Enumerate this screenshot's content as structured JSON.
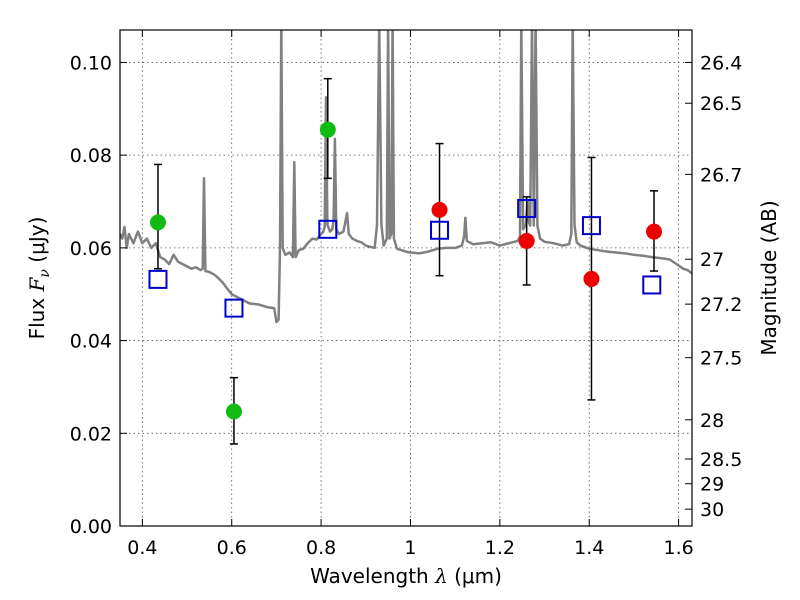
{
  "chart_data": {
    "type": "scatter",
    "xlabel": {
      "pre": "Wavelength ",
      "sym": "λ",
      "post": " (μm)"
    },
    "ylabel": {
      "pre": "Flux ",
      "sym": "F",
      "sub": "ν",
      "post": " (μJy)"
    },
    "y2label": "Magnitude (AB)",
    "xlim": [
      0.35,
      1.63
    ],
    "ylim": [
      0.0,
      0.107
    ],
    "xticks": [
      {
        "v": 0.4,
        "label": "0.4"
      },
      {
        "v": 0.6,
        "label": "0.6"
      },
      {
        "v": 0.8,
        "label": "0.8"
      },
      {
        "v": 1.0,
        "label": "1"
      },
      {
        "v": 1.2,
        "label": "1.2"
      },
      {
        "v": 1.4,
        "label": "1.4"
      },
      {
        "v": 1.6,
        "label": "1.6"
      }
    ],
    "yticks": [
      {
        "v": 0.0,
        "label": "0.00"
      },
      {
        "v": 0.02,
        "label": "0.02"
      },
      {
        "v": 0.04,
        "label": "0.04"
      },
      {
        "v": 0.06,
        "label": "0.06"
      },
      {
        "v": 0.08,
        "label": "0.08"
      },
      {
        "v": 0.1,
        "label": "0.10"
      }
    ],
    "y2ticks": [
      {
        "mag": 26.4,
        "label": "26.4"
      },
      {
        "mag": 26.5,
        "label": "26.5"
      },
      {
        "mag": 26.7,
        "label": "26.7"
      },
      {
        "mag": 27.0,
        "label": "27"
      },
      {
        "mag": 27.2,
        "label": "27.2"
      },
      {
        "mag": 27.5,
        "label": "27.5"
      },
      {
        "mag": 28.0,
        "label": "28"
      },
      {
        "mag": 28.5,
        "label": "28.5"
      },
      {
        "mag": 29.0,
        "label": "29"
      },
      {
        "mag": 30.0,
        "label": "30"
      }
    ],
    "grid": true,
    "colors": {
      "green": "#11bb11",
      "red": "#ee0000",
      "blue": "#0000cc",
      "spectrum": "#808080"
    },
    "series": [
      {
        "marker": "circle",
        "color": "green",
        "points": [
          {
            "x": 0.435,
            "y": 0.0655,
            "lo": 0.0555,
            "hi": 0.078
          },
          {
            "x": 0.605,
            "y": 0.0247,
            "lo": 0.0177,
            "hi": 0.032
          },
          {
            "x": 0.815,
            "y": 0.0855,
            "lo": 0.075,
            "hi": 0.0965
          }
        ]
      },
      {
        "marker": "circle",
        "color": "red",
        "points": [
          {
            "x": 1.065,
            "y": 0.0682,
            "lo": 0.054,
            "hi": 0.0825
          },
          {
            "x": 1.26,
            "y": 0.0615,
            "lo": 0.052,
            "hi": 0.071
          },
          {
            "x": 1.405,
            "y": 0.0533,
            "lo": 0.0272,
            "hi": 0.0795
          },
          {
            "x": 1.545,
            "y": 0.0635,
            "lo": 0.055,
            "hi": 0.0723
          }
        ]
      },
      {
        "marker": "square",
        "color": "blue",
        "points": [
          {
            "x": 0.435,
            "y": 0.0532
          },
          {
            "x": 0.605,
            "y": 0.047
          },
          {
            "x": 0.815,
            "y": 0.064
          },
          {
            "x": 1.065,
            "y": 0.0638
          },
          {
            "x": 1.26,
            "y": 0.0685
          },
          {
            "x": 1.405,
            "y": 0.0648
          },
          {
            "x": 1.54,
            "y": 0.052
          }
        ]
      }
    ],
    "spectrum": [
      [
        0.35,
        0.063
      ],
      [
        0.355,
        0.062
      ],
      [
        0.36,
        0.0645
      ],
      [
        0.365,
        0.06
      ],
      [
        0.37,
        0.063
      ],
      [
        0.38,
        0.061
      ],
      [
        0.39,
        0.0635
      ],
      [
        0.4,
        0.061
      ],
      [
        0.41,
        0.062
      ],
      [
        0.42,
        0.06
      ],
      [
        0.43,
        0.061
      ],
      [
        0.44,
        0.058
      ],
      [
        0.45,
        0.0575
      ],
      [
        0.46,
        0.0565
      ],
      [
        0.47,
        0.0585
      ],
      [
        0.48,
        0.057
      ],
      [
        0.49,
        0.0565
      ],
      [
        0.5,
        0.056
      ],
      [
        0.51,
        0.0555
      ],
      [
        0.52,
        0.0558
      ],
      [
        0.53,
        0.0552
      ],
      [
        0.535,
        0.0555
      ],
      [
        0.538,
        0.075
      ],
      [
        0.541,
        0.055
      ],
      [
        0.55,
        0.0548
      ],
      [
        0.56,
        0.0543
      ],
      [
        0.57,
        0.0535
      ],
      [
        0.58,
        0.0525
      ],
      [
        0.59,
        0.0512
      ],
      [
        0.6,
        0.05
      ],
      [
        0.62,
        0.049
      ],
      [
        0.64,
        0.048
      ],
      [
        0.66,
        0.0478
      ],
      [
        0.68,
        0.0472
      ],
      [
        0.695,
        0.047
      ],
      [
        0.7,
        0.044
      ],
      [
        0.705,
        0.0445
      ],
      [
        0.708,
        0.06
      ],
      [
        0.711,
        0.109
      ],
      [
        0.714,
        0.06
      ],
      [
        0.72,
        0.0585
      ],
      [
        0.73,
        0.059
      ],
      [
        0.737,
        0.058
      ],
      [
        0.74,
        0.0785
      ],
      [
        0.743,
        0.058
      ],
      [
        0.75,
        0.0595
      ],
      [
        0.76,
        0.0598
      ],
      [
        0.77,
        0.061
      ],
      [
        0.78,
        0.062
      ],
      [
        0.79,
        0.0618
      ],
      [
        0.8,
        0.063
      ],
      [
        0.805,
        0.0635
      ],
      [
        0.808,
        0.0645
      ],
      [
        0.811,
        0.0925
      ],
      [
        0.814,
        0.065
      ],
      [
        0.82,
        0.0635
      ],
      [
        0.825,
        0.064
      ],
      [
        0.828,
        0.066
      ],
      [
        0.831,
        0.0835
      ],
      [
        0.834,
        0.064
      ],
      [
        0.84,
        0.063
      ],
      [
        0.85,
        0.0635
      ],
      [
        0.855,
        0.066
      ],
      [
        0.858,
        0.0675
      ],
      [
        0.862,
        0.063
      ],
      [
        0.87,
        0.062
      ],
      [
        0.88,
        0.0615
      ],
      [
        0.89,
        0.0612
      ],
      [
        0.9,
        0.0605
      ],
      [
        0.91,
        0.0602
      ],
      [
        0.92,
        0.06
      ],
      [
        0.925,
        0.065
      ],
      [
        0.93,
        0.109
      ],
      [
        0.935,
        0.065
      ],
      [
        0.94,
        0.0605
      ],
      [
        0.947,
        0.062
      ],
      [
        0.95,
        0.109
      ],
      [
        0.953,
        0.062
      ],
      [
        0.957,
        0.063
      ],
      [
        0.96,
        0.109
      ],
      [
        0.963,
        0.062
      ],
      [
        0.97,
        0.0598
      ],
      [
        0.98,
        0.0595
      ],
      [
        0.99,
        0.0592
      ],
      [
        1.0,
        0.059
      ],
      [
        1.02,
        0.0588
      ],
      [
        1.04,
        0.0592
      ],
      [
        1.06,
        0.0598
      ],
      [
        1.08,
        0.06
      ],
      [
        1.1,
        0.06
      ],
      [
        1.115,
        0.0605
      ],
      [
        1.12,
        0.0625
      ],
      [
        1.123,
        0.0665
      ],
      [
        1.126,
        0.0615
      ],
      [
        1.14,
        0.0608
      ],
      [
        1.16,
        0.061
      ],
      [
        1.18,
        0.0612
      ],
      [
        1.2,
        0.0605
      ],
      [
        1.22,
        0.061
      ],
      [
        1.24,
        0.0615
      ],
      [
        1.245,
        0.0625
      ],
      [
        1.248,
        0.109
      ],
      [
        1.252,
        0.064
      ],
      [
        1.258,
        0.065
      ],
      [
        1.262,
        0.07
      ],
      [
        1.265,
        0.0655
      ],
      [
        1.268,
        0.0648
      ],
      [
        1.272,
        0.109
      ],
      [
        1.276,
        0.0648
      ],
      [
        1.28,
        0.109
      ],
      [
        1.284,
        0.0648
      ],
      [
        1.29,
        0.062
      ],
      [
        1.3,
        0.0613
      ],
      [
        1.32,
        0.061
      ],
      [
        1.34,
        0.0605
      ],
      [
        1.355,
        0.0608
      ],
      [
        1.36,
        0.063
      ],
      [
        1.363,
        0.109
      ],
      [
        1.367,
        0.065
      ],
      [
        1.372,
        0.0612
      ],
      [
        1.38,
        0.0605
      ],
      [
        1.4,
        0.0598
      ],
      [
        1.42,
        0.0595
      ],
      [
        1.44,
        0.0592
      ],
      [
        1.46,
        0.059
      ],
      [
        1.48,
        0.0588
      ],
      [
        1.5,
        0.0585
      ],
      [
        1.52,
        0.0583
      ],
      [
        1.54,
        0.058
      ],
      [
        1.56,
        0.0578
      ],
      [
        1.58,
        0.0575
      ],
      [
        1.6,
        0.0562
      ],
      [
        1.61,
        0.0555
      ],
      [
        1.62,
        0.0552
      ],
      [
        1.63,
        0.0545
      ]
    ]
  }
}
